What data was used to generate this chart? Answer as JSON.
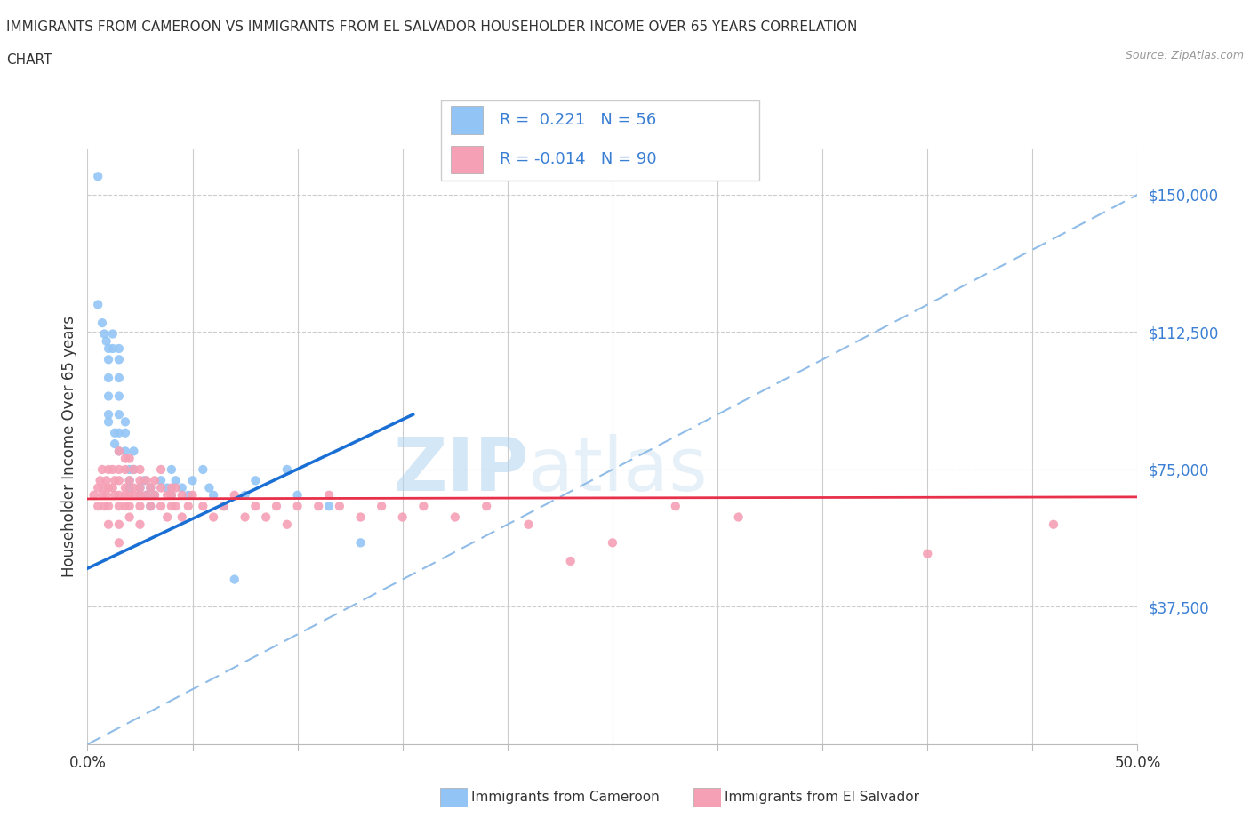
{
  "title_line1": "IMMIGRANTS FROM CAMEROON VS IMMIGRANTS FROM EL SALVADOR HOUSEHOLDER INCOME OVER 65 YEARS CORRELATION",
  "title_line2": "CHART",
  "source_text": "Source: ZipAtlas.com",
  "ylabel": "Householder Income Over 65 years",
  "xlim": [
    0.0,
    0.5
  ],
  "ylim": [
    0,
    162500
  ],
  "yticks": [
    0,
    37500,
    75000,
    112500,
    150000
  ],
  "ytick_labels": [
    "",
    "$37,500",
    "$75,000",
    "$112,500",
    "$150,000"
  ],
  "xticks": [
    0.0,
    0.05,
    0.1,
    0.15,
    0.2,
    0.25,
    0.3,
    0.35,
    0.4,
    0.45,
    0.5
  ],
  "xtick_labels": [
    "0.0%",
    "",
    "",
    "",
    "",
    "",
    "",
    "",
    "",
    "",
    "50.0%"
  ],
  "cameroon_color": "#92c5f5",
  "elsalvador_color": "#f5a0b5",
  "cameroon_R": 0.221,
  "cameroon_N": 56,
  "elsalvador_R": -0.014,
  "elsalvador_N": 90,
  "trend_blue_color": "#1a6fd4",
  "trend_pink_color": "#e8304a",
  "dashed_line_color": "#90bce8",
  "watermark_zip": "ZIP",
  "watermark_atlas": "atlas",
  "cameroon_scatter_x": [
    0.005,
    0.005,
    0.007,
    0.008,
    0.009,
    0.01,
    0.01,
    0.01,
    0.01,
    0.01,
    0.01,
    0.012,
    0.012,
    0.013,
    0.013,
    0.015,
    0.015,
    0.015,
    0.015,
    0.015,
    0.015,
    0.015,
    0.018,
    0.018,
    0.018,
    0.02,
    0.02,
    0.02,
    0.022,
    0.022,
    0.025,
    0.025,
    0.027,
    0.028,
    0.03,
    0.03,
    0.032,
    0.035,
    0.038,
    0.04,
    0.04,
    0.042,
    0.045,
    0.048,
    0.05,
    0.055,
    0.058,
    0.06,
    0.065,
    0.07,
    0.075,
    0.08,
    0.095,
    0.1,
    0.115,
    0.13
  ],
  "cameroon_scatter_y": [
    155000,
    120000,
    115000,
    112000,
    110000,
    108000,
    105000,
    100000,
    95000,
    90000,
    88000,
    112000,
    108000,
    85000,
    82000,
    108000,
    105000,
    100000,
    95000,
    90000,
    85000,
    80000,
    88000,
    85000,
    80000,
    75000,
    72000,
    70000,
    80000,
    75000,
    70000,
    68000,
    72000,
    68000,
    70000,
    65000,
    68000,
    72000,
    70000,
    75000,
    68000,
    72000,
    70000,
    68000,
    72000,
    75000,
    70000,
    68000,
    65000,
    45000,
    68000,
    72000,
    75000,
    68000,
    65000,
    55000
  ],
  "elsalvador_scatter_x": [
    0.003,
    0.005,
    0.005,
    0.006,
    0.007,
    0.007,
    0.008,
    0.008,
    0.009,
    0.009,
    0.01,
    0.01,
    0.01,
    0.01,
    0.012,
    0.012,
    0.013,
    0.013,
    0.015,
    0.015,
    0.015,
    0.015,
    0.015,
    0.015,
    0.015,
    0.018,
    0.018,
    0.018,
    0.018,
    0.018,
    0.02,
    0.02,
    0.02,
    0.02,
    0.02,
    0.022,
    0.022,
    0.022,
    0.025,
    0.025,
    0.025,
    0.025,
    0.025,
    0.025,
    0.028,
    0.028,
    0.03,
    0.03,
    0.032,
    0.032,
    0.035,
    0.035,
    0.035,
    0.038,
    0.038,
    0.04,
    0.04,
    0.04,
    0.042,
    0.042,
    0.045,
    0.045,
    0.048,
    0.05,
    0.055,
    0.06,
    0.065,
    0.07,
    0.075,
    0.08,
    0.085,
    0.09,
    0.095,
    0.1,
    0.11,
    0.115,
    0.12,
    0.13,
    0.14,
    0.15,
    0.16,
    0.175,
    0.19,
    0.21,
    0.23,
    0.25,
    0.28,
    0.31,
    0.4,
    0.46
  ],
  "elsalvador_scatter_y": [
    68000,
    70000,
    65000,
    72000,
    75000,
    68000,
    70000,
    65000,
    72000,
    68000,
    75000,
    70000,
    65000,
    60000,
    75000,
    70000,
    68000,
    72000,
    80000,
    75000,
    72000,
    68000,
    65000,
    60000,
    55000,
    78000,
    75000,
    70000,
    68000,
    65000,
    78000,
    72000,
    68000,
    65000,
    62000,
    75000,
    70000,
    68000,
    75000,
    72000,
    70000,
    68000,
    65000,
    60000,
    72000,
    68000,
    70000,
    65000,
    72000,
    68000,
    75000,
    70000,
    65000,
    68000,
    62000,
    70000,
    68000,
    65000,
    70000,
    65000,
    68000,
    62000,
    65000,
    68000,
    65000,
    62000,
    65000,
    68000,
    62000,
    65000,
    62000,
    65000,
    60000,
    65000,
    65000,
    68000,
    65000,
    62000,
    65000,
    62000,
    65000,
    62000,
    65000,
    60000,
    50000,
    55000,
    65000,
    62000,
    52000,
    60000
  ]
}
